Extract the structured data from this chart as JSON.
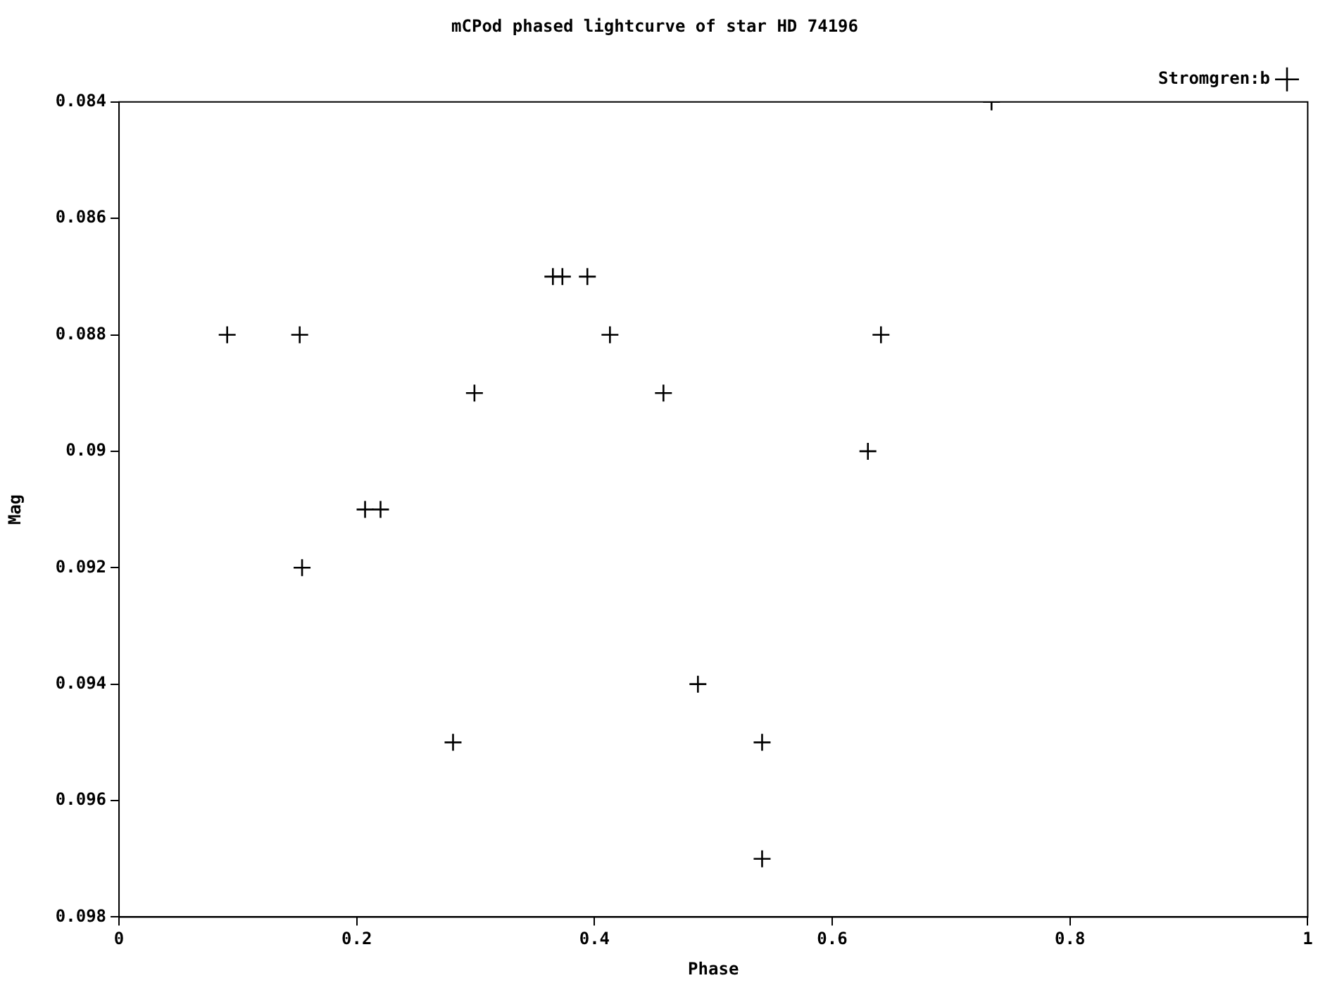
{
  "chart_data": {
    "type": "scatter",
    "title": "mCPod phased lightcurve of star HD 74196",
    "xlabel": "Phase",
    "ylabel": "Mag",
    "x": [
      0.091,
      0.152,
      0.154,
      0.207,
      0.22,
      0.281,
      0.299,
      0.365,
      0.373,
      0.394,
      0.413,
      0.458,
      0.487,
      0.541,
      0.541,
      0.63,
      0.641,
      0.734
    ],
    "series": [
      {
        "name": "Stromgren:b",
        "color": "#000000",
        "values": [
          0.088,
          0.088,
          0.092,
          0.091,
          0.091,
          0.095,
          0.089,
          0.087,
          0.087,
          0.087,
          0.088,
          0.089,
          0.094,
          0.095,
          0.097,
          0.09,
          0.088,
          0.084
        ]
      }
    ],
    "xlim": [
      0,
      1
    ],
    "xticks": [
      0,
      0.2,
      0.4,
      0.6,
      0.8,
      1
    ],
    "ylim": [
      0.098,
      0.084
    ],
    "yticks": [
      0.084,
      0.086,
      0.088,
      0.09,
      0.092,
      0.094,
      0.096,
      0.098
    ],
    "grid": false,
    "legend": "top right",
    "marker": "cross"
  }
}
